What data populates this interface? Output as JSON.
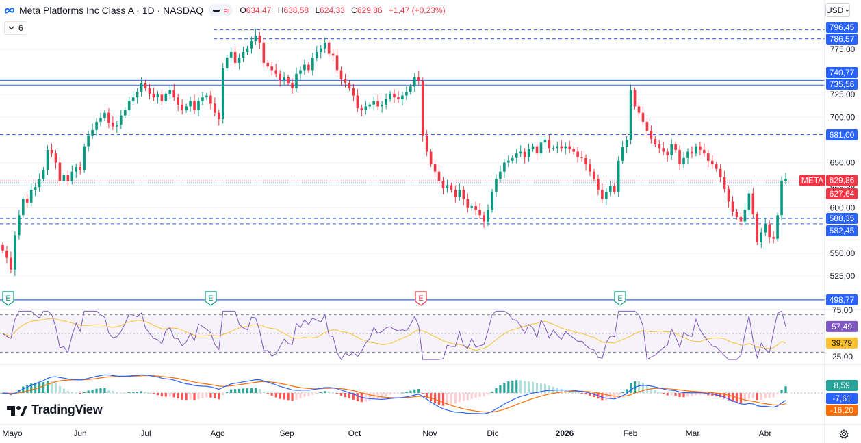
{
  "header": {
    "title": "Meta Platforms Inc Class A · 1D · NASDAQ",
    "open_label": "O",
    "open": "634,47",
    "high_label": "H",
    "high": "638,58",
    "low_label": "L",
    "low": "624,33",
    "close_label": "C",
    "close": "629,86",
    "change": "+1,47 (+0,23%)",
    "wave_symbol": "≈"
  },
  "collapse": {
    "count": "6"
  },
  "currency": {
    "label": "USD"
  },
  "brand": {
    "name": "TradingView"
  },
  "colors": {
    "up": "#089981",
    "down": "#f23645",
    "blue": "#2962ff",
    "rsi": "#7e57c2",
    "rsi_ma": "#fbc02d",
    "macd": "#2962ff",
    "signal": "#ff6d00"
  },
  "chart_data": {
    "type": "candlestick",
    "symbol": "META",
    "last_price": 629.86,
    "price_axis": {
      "ticks": [
        525,
        550,
        600,
        625,
        650,
        700,
        725,
        775
      ],
      "tick_labels": [
        "525,00",
        "550,00",
        "600,00",
        "625,00",
        "650,00",
        "700,00",
        "725,00",
        "775,00"
      ]
    },
    "time_axis": {
      "labels": [
        "Mayo",
        "Jun",
        "Jul",
        "Ago",
        "Sep",
        "Oct",
        "Nov",
        "Dic",
        "2026",
        "Feb",
        "Mar",
        "Abr"
      ]
    },
    "candles_close": [
      553,
      545,
      532,
      570,
      592,
      610,
      606,
      620,
      623,
      632,
      642,
      664,
      660,
      650,
      630,
      636,
      630,
      640,
      645,
      642,
      668,
      680,
      686,
      695,
      699,
      705,
      694,
      690,
      692,
      702,
      708,
      718,
      722,
      728,
      738,
      732,
      726,
      722,
      725,
      718,
      726,
      730,
      722,
      714,
      708,
      712,
      718,
      708,
      718,
      722,
      724,
      715,
      705,
      698,
      754,
      766,
      772,
      760,
      766,
      772,
      776,
      784,
      790,
      782,
      760,
      756,
      752,
      748,
      741,
      744,
      738,
      732,
      748,
      752,
      758,
      752,
      766,
      772,
      776,
      782,
      770,
      768,
      752,
      742,
      738,
      732,
      724,
      710,
      708,
      712,
      714,
      718,
      712,
      714,
      720,
      726,
      722,
      720,
      724,
      728,
      734,
      744,
      740,
      680,
      662,
      648,
      640,
      630,
      622,
      625,
      620,
      612,
      620,
      610,
      600,
      602,
      598,
      592,
      585,
      598,
      618,
      632,
      640,
      650,
      652,
      655,
      660,
      662,
      656,
      665,
      668,
      660,
      672,
      675,
      666,
      666,
      668,
      666,
      668,
      665,
      662,
      656,
      655,
      648,
      640,
      632,
      620,
      610,
      618,
      624,
      618,
      652,
      667,
      675,
      730,
      712,
      705,
      695,
      685,
      676,
      670,
      666,
      662,
      658,
      670,
      664,
      648,
      655,
      662,
      660,
      668,
      664,
      660,
      652,
      648,
      643,
      634,
      621,
      607,
      596,
      590,
      585,
      598,
      616,
      593,
      562,
      573,
      582,
      568,
      566,
      592,
      630,
      632
    ],
    "horizontal_levels": [
      {
        "price": 796.45,
        "label": "796,45",
        "style": "dashed"
      },
      {
        "price": 786.57,
        "label": "786,57",
        "style": "dashed"
      },
      {
        "price": 740.77,
        "label": "740,77",
        "style": "solid"
      },
      {
        "price": 735.56,
        "label": "735,56",
        "style": "solid"
      },
      {
        "price": 681.0,
        "label": "681,00",
        "style": "dashed"
      },
      {
        "price": 627.64,
        "label": "627,64",
        "style": "dotted"
      },
      {
        "price": 588.35,
        "label": "588,35",
        "style": "dashed"
      },
      {
        "price": 582.45,
        "label": "582,45",
        "style": "dashed"
      },
      {
        "price": 498.77,
        "label": "498,77",
        "style": "solid"
      }
    ],
    "last_price_label": "629,86",
    "symbol_tag": "META",
    "earnings_markers": [
      {
        "label": "E",
        "type": "earnings"
      },
      {
        "label": "E",
        "type": "earnings"
      },
      {
        "label": "E",
        "type": "earnings-miss"
      },
      {
        "label": "E",
        "type": "earnings"
      }
    ],
    "rsi": {
      "tick_labels": [
        "75,00",
        "25,00"
      ],
      "bands": [
        70,
        50,
        30
      ],
      "value": 57.49,
      "value_label": "57,49",
      "ma": 39.79,
      "ma_label": "39,79"
    },
    "macd": {
      "histogram_label": "8,59",
      "macd_label": "-7,61",
      "signal_label": "-16,20"
    }
  }
}
